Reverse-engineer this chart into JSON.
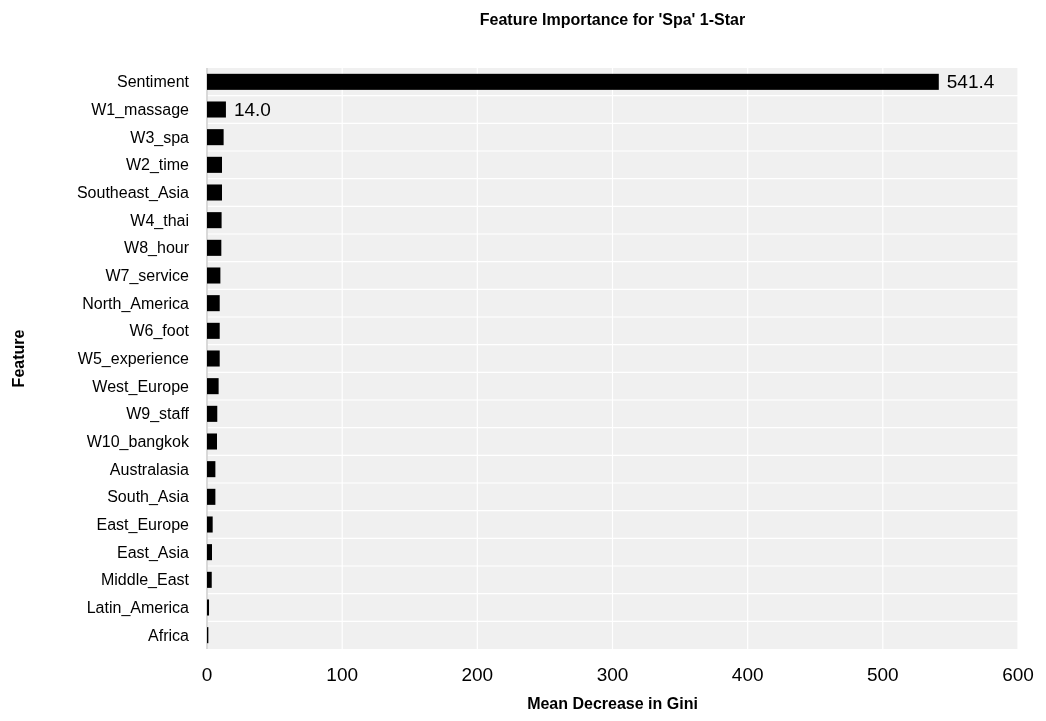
{
  "chart_data": {
    "type": "bar",
    "orientation": "horizontal",
    "title": "Feature Importance for 'Spa' 1-Star",
    "xlabel": "Mean Decrease in Gini",
    "ylabel": "Feature",
    "categories": [
      "Sentiment",
      "W1_massage",
      "W3_spa",
      "W2_time",
      "Southeast_Asia",
      "W4_thai",
      "W8_hour",
      "W7_service",
      "North_America",
      "W6_foot",
      "W5_experience",
      "West_Europe",
      "W9_staff",
      "W10_bangkok",
      "Australasia",
      "South_Asia",
      "East_Europe",
      "East_Asia",
      "Middle_East",
      "Latin_America",
      "Africa"
    ],
    "values": [
      541.4,
      14.0,
      12.3,
      11.1,
      11.1,
      10.8,
      10.6,
      9.9,
      9.4,
      9.4,
      9.4,
      8.6,
      7.6,
      7.4,
      6.2,
      6.2,
      4.2,
      3.7,
      3.5,
      1.5,
      1.0
    ],
    "value_labels": [
      "541.4",
      "14.0",
      null,
      null,
      null,
      null,
      null,
      null,
      null,
      null,
      null,
      null,
      null,
      null,
      null,
      null,
      null,
      null,
      null,
      null,
      null
    ],
    "color": "#000000",
    "xlim": [
      0,
      600
    ],
    "xticks": [
      0,
      100,
      200,
      300,
      400,
      500,
      600
    ],
    "grid": true
  }
}
